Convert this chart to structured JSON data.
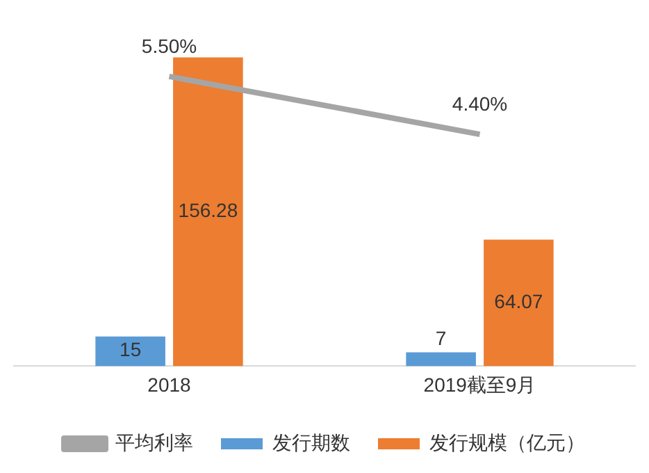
{
  "chart_data": {
    "type": "bar",
    "categories": [
      "2018",
      "2019截至9月"
    ],
    "series": [
      {
        "name": "发行期数",
        "color": "#5b9bd5",
        "values": [
          15,
          7
        ]
      },
      {
        "name": "发行规模（亿元）",
        "color": "#ed7d31",
        "values": [
          156.28,
          64.07
        ]
      },
      {
        "name": "平均利率",
        "type": "line",
        "axis": "y2",
        "color": "#a5a5a5",
        "values": [
          5.5,
          4.4
        ],
        "value_labels": [
          "5.50%",
          "4.40%"
        ]
      }
    ],
    "data_labels": true,
    "legend": "bottom",
    "grid": false,
    "tick_labels": "x",
    "marker": "none"
  }
}
